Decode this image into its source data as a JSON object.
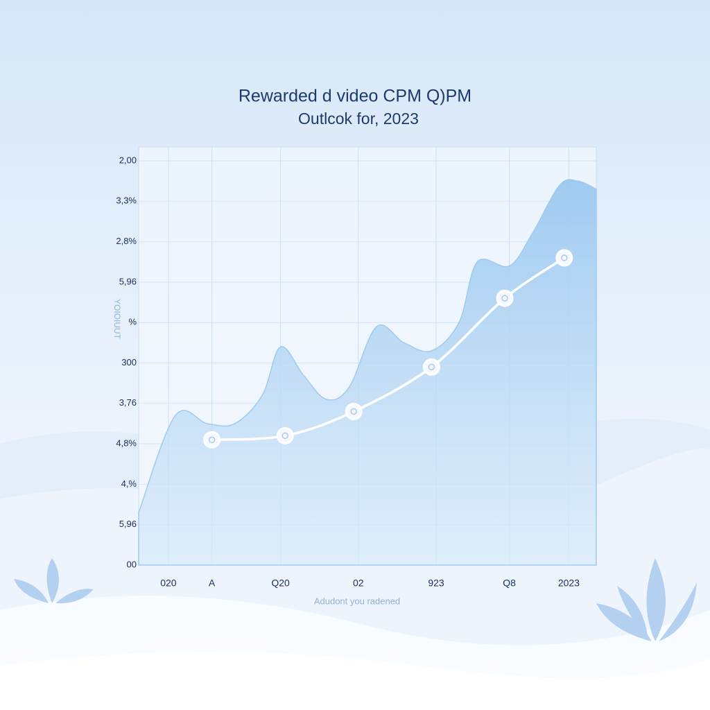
{
  "chart_data": {
    "type": "line",
    "title": [
      "Rewarded d video CPM Q)PM",
      "Outlcok for, 2023"
    ],
    "x_label": "Adudont you radened",
    "y_label": "YOIOIUUT",
    "xlim": [
      0,
      10
    ],
    "ylim": [
      0,
      10
    ],
    "xticks": [
      {
        "value": 0.65,
        "label": "020"
      },
      {
        "value": 1.6,
        "label": "A"
      },
      {
        "value": 3.1,
        "label": "Q20"
      },
      {
        "value": 4.8,
        "label": "02"
      },
      {
        "value": 6.5,
        "label": "923"
      },
      {
        "value": 8.1,
        "label": "Q8"
      },
      {
        "value": 9.4,
        "label": "2023"
      }
    ],
    "yticks": [
      {
        "value": 0,
        "label": "00"
      },
      {
        "value": 1,
        "label": "5,96"
      },
      {
        "value": 2,
        "label": "4,%"
      },
      {
        "value": 3,
        "label": "4,8%"
      },
      {
        "value": 4,
        "label": "3,76"
      },
      {
        "value": 5,
        "label": "300"
      },
      {
        "value": 6,
        "label": "%"
      },
      {
        "value": 7,
        "label": "5,96"
      },
      {
        "value": 8,
        "label": "2,8%"
      },
      {
        "value": 9,
        "label": "3,3%"
      },
      {
        "value": 10,
        "label": "2,00"
      }
    ],
    "grid": true,
    "series": [
      {
        "type": "area",
        "color": "#9fcaf0",
        "x": [
          0,
          0.8,
          1.5,
          2.1,
          2.7,
          3.1,
          3.6,
          4.1,
          4.6,
          5.2,
          5.8,
          6.4,
          7.0,
          7.4,
          8.1,
          8.6,
          9.2,
          9.6,
          10.0
        ],
        "values": [
          1.3,
          3.7,
          3.5,
          3.5,
          4.2,
          5.4,
          4.7,
          4.1,
          4.4,
          5.9,
          5.5,
          5.3,
          6.0,
          7.5,
          7.4,
          8.2,
          9.4,
          9.5,
          9.3
        ]
      },
      {
        "type": "line",
        "color": "#ffffff",
        "x": [
          1.6,
          3.2,
          4.7,
          6.4,
          8.0,
          9.3
        ],
        "values": [
          3.1,
          3.2,
          3.8,
          4.9,
          6.6,
          7.6
        ]
      }
    ]
  }
}
